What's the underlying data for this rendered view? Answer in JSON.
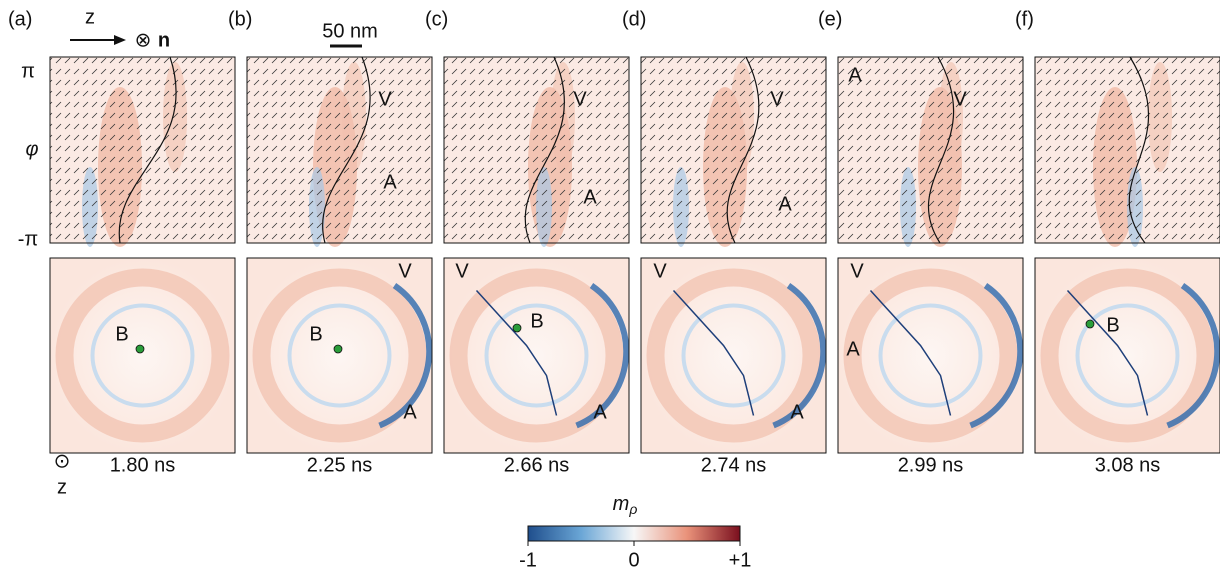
{
  "header": {
    "direction_label": "z",
    "normal_symbol": "⊗",
    "normal_label": "n",
    "scale_bar": "50 nm",
    "phi_label": "φ",
    "phi_max": "π",
    "phi_min": "-π",
    "out_of_plane_symbol": "⊙",
    "out_of_plane_label": "z"
  },
  "panels": [
    {
      "label": "(a)",
      "time": "1.80 ns",
      "bottom_labels": [
        "B"
      ]
    },
    {
      "label": "(b)",
      "time": "2.25 ns",
      "top_labels": [
        "V",
        "A"
      ],
      "bottom_labels": [
        "B",
        "V",
        "A"
      ]
    },
    {
      "label": "(c)",
      "time": "2.66 ns",
      "top_labels": [
        "V",
        "A"
      ],
      "bottom_labels": [
        "V",
        "B",
        "A"
      ]
    },
    {
      "label": "(d)",
      "time": "2.74 ns",
      "top_labels": [
        "V",
        "A"
      ],
      "bottom_labels": [
        "V",
        "A"
      ]
    },
    {
      "label": "(e)",
      "time": "2.99 ns",
      "top_labels": [
        "A",
        "V"
      ],
      "bottom_labels": [
        "V",
        "A"
      ]
    },
    {
      "label": "(f)",
      "time": "3.08 ns",
      "bottom_labels": [
        "B"
      ]
    }
  ],
  "colorbar": {
    "label": "m",
    "subscript": "ρ",
    "lim": [
      -1,
      1
    ],
    "ticks": [
      -1,
      0,
      {
        "value": 1,
        "label": "+1"
      }
    ]
  }
}
